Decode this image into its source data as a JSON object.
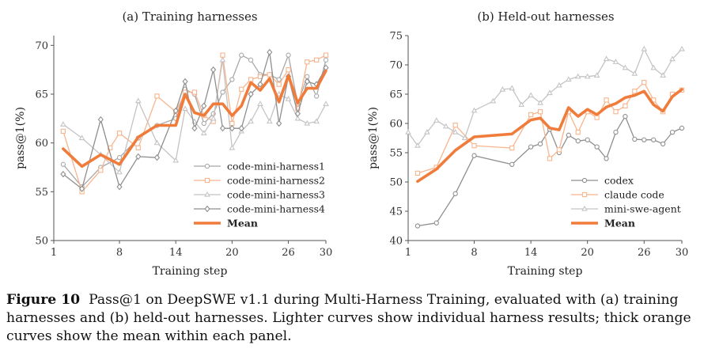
{
  "caption": {
    "label": "Figure 10",
    "text": "Pass@1 on DeepSWE v1.1 during Multi-Harness Training, evaluated with (a) training harnesses and (b) held-out harnesses. Lighter curves show individual harness results; thick orange curves show the mean within each panel."
  },
  "colors": {
    "mean": "#f07c3c",
    "axis": "#555555"
  },
  "chart_data": [
    {
      "type": "line",
      "title": "(a) Training harnesses",
      "xlabel": "Training step",
      "ylabel": "pass@1(%)",
      "xlim": [
        1,
        30
      ],
      "ylim": [
        50,
        71
      ],
      "xticks": [
        1,
        8,
        14,
        20,
        26,
        30
      ],
      "yticks": [
        50,
        55,
        60,
        65,
        70
      ],
      "legend_position": "bottom-right",
      "series": [
        {
          "name": "code-mini-harness1",
          "color": "#a8a8a8",
          "marker": "circle",
          "width": 1.3,
          "x": [
            2,
            4,
            6,
            8,
            10,
            12,
            14,
            15,
            16,
            17,
            18,
            19,
            20,
            21,
            22,
            23,
            24,
            25,
            26,
            27,
            28,
            29,
            30
          ],
          "y": [
            57.8,
            55.5,
            57.5,
            58.5,
            60.5,
            61.8,
            62.5,
            65.5,
            65,
            62,
            63,
            65.2,
            66.5,
            69,
            68.5,
            67,
            67,
            66.5,
            69,
            64,
            66.8,
            64.8,
            68.5
          ]
        },
        {
          "name": "code-mini-harness2",
          "color": "#f7b58e",
          "marker": "square",
          "width": 1.3,
          "x": [
            2,
            4,
            6,
            7,
            8,
            10,
            12,
            14,
            15,
            16,
            17,
            18,
            19,
            20,
            21,
            22,
            23,
            24,
            25,
            26,
            27,
            28,
            29,
            30
          ],
          "y": [
            61.2,
            55,
            57.2,
            59.5,
            61,
            59.5,
            64.8,
            63.2,
            65.2,
            65.2,
            62.8,
            62.2,
            69,
            62,
            65.5,
            66.5,
            66.8,
            67,
            66,
            67.5,
            63.5,
            68.3,
            68.5,
            69
          ]
        },
        {
          "name": "code-mini-harness3",
          "color": "#c4c4c4",
          "marker": "triangle",
          "width": 1.3,
          "x": [
            2,
            4,
            6,
            8,
            10,
            12,
            14,
            15,
            16,
            17,
            18,
            19,
            20,
            21,
            22,
            23,
            24,
            25,
            26,
            27,
            28,
            29,
            30
          ],
          "y": [
            61.9,
            60.5,
            58.8,
            57,
            64.3,
            60,
            58.2,
            63.5,
            62.2,
            61,
            62.5,
            68.5,
            59.5,
            61.2,
            62.2,
            64,
            62.2,
            65,
            64.5,
            62.5,
            62,
            62.2,
            64
          ]
        },
        {
          "name": "code-mini-harness4",
          "color": "#8f8f8f",
          "marker": "diamond",
          "width": 1.3,
          "x": [
            2,
            4,
            6,
            8,
            10,
            12,
            14,
            15,
            16,
            17,
            18,
            19,
            20,
            21,
            22,
            23,
            24,
            25,
            26,
            27,
            28,
            29,
            30
          ],
          "y": [
            56.8,
            55.3,
            62.4,
            55.5,
            58.6,
            58.5,
            63.3,
            66.3,
            61.5,
            63.8,
            67.5,
            61.5,
            61.5,
            61.5,
            65,
            66,
            69.3,
            62,
            66.8,
            63,
            66.3,
            66,
            67.7
          ]
        },
        {
          "name": "Mean",
          "color": "#f07c3c",
          "marker": "none",
          "width": 3.6,
          "x": [
            2,
            4,
            6,
            8,
            10,
            12,
            14,
            15,
            16,
            17,
            18,
            19,
            20,
            21,
            22,
            23,
            24,
            25,
            26,
            27,
            28,
            29,
            30
          ],
          "y": [
            59.4,
            57.6,
            58.8,
            57.8,
            60.6,
            61.8,
            61.8,
            65,
            63.1,
            62.8,
            64,
            64,
            62.8,
            63.8,
            66.2,
            65.4,
            66.6,
            64.2,
            66.9,
            64.1,
            65.6,
            65.6,
            67.4
          ]
        }
      ]
    },
    {
      "type": "line",
      "title": "(b) Held-out harnesses",
      "xlabel": "Training step",
      "ylabel": "pass@1(%)",
      "xlim": [
        1,
        30
      ],
      "ylim": [
        40,
        75
      ],
      "xticks": [
        1,
        8,
        14,
        20,
        26,
        30
      ],
      "yticks": [
        40,
        45,
        50,
        55,
        60,
        65,
        70,
        75
      ],
      "legend_position": "bottom-right",
      "series": [
        {
          "name": "codex",
          "color": "#8f8f8f",
          "marker": "circle",
          "width": 1.3,
          "x": [
            2,
            4,
            6,
            8,
            12,
            14,
            15,
            16,
            17,
            18,
            19,
            20,
            21,
            22,
            23,
            24,
            25,
            26,
            27,
            28,
            29,
            30
          ],
          "y": [
            42.5,
            43,
            48,
            54.5,
            53,
            56,
            56.5,
            59,
            55,
            58,
            57,
            57.2,
            56,
            54,
            58.5,
            61.2,
            57.3,
            57.2,
            57.2,
            56.5,
            58.5,
            59.2
          ]
        },
        {
          "name": "claude code",
          "color": "#f7b58e",
          "marker": "square",
          "width": 1.3,
          "x": [
            2,
            4,
            6,
            8,
            12,
            14,
            15,
            16,
            17,
            18,
            19,
            20,
            21,
            22,
            23,
            24,
            25,
            26,
            27,
            28,
            29,
            30
          ],
          "y": [
            51.5,
            52.5,
            59.7,
            56.2,
            55.8,
            61.5,
            62,
            54,
            55.5,
            62,
            58.5,
            62,
            61,
            64,
            62,
            63,
            65.5,
            67,
            64,
            62,
            65,
            65.7
          ]
        },
        {
          "name": "mini-swe-agent",
          "color": "#c4c4c4",
          "marker": "triangle",
          "width": 1.3,
          "x": [
            1,
            2,
            3,
            4,
            5,
            6,
            7,
            8,
            10,
            11,
            12,
            13,
            14,
            15,
            16,
            17,
            18,
            19,
            20,
            21,
            22,
            23,
            24,
            25,
            26,
            27,
            28,
            29,
            30
          ],
          "y": [
            58.5,
            56.2,
            58.5,
            60.5,
            59.5,
            58.5,
            57.5,
            62.2,
            63.8,
            65.8,
            66,
            63.2,
            64.8,
            63.5,
            65.2,
            66.5,
            67.5,
            68,
            68,
            68.2,
            71,
            70.5,
            69.5,
            68.5,
            72.7,
            69.5,
            68.2,
            71,
            72.7
          ]
        },
        {
          "name": "Mean",
          "color": "#f07c3c",
          "marker": "none",
          "width": 3.6,
          "x": [
            2,
            4,
            6,
            8,
            12,
            14,
            15,
            16,
            17,
            18,
            19,
            20,
            21,
            22,
            23,
            24,
            25,
            26,
            27,
            28,
            29,
            30
          ],
          "y": [
            50.1,
            52.2,
            55.4,
            57.7,
            58.2,
            60.6,
            60.9,
            59.2,
            58.9,
            62.7,
            61.2,
            62.4,
            61.5,
            62.8,
            63.4,
            64.4,
            64.8,
            65.5,
            63.2,
            62.1,
            64.6,
            65.8
          ]
        }
      ]
    }
  ]
}
